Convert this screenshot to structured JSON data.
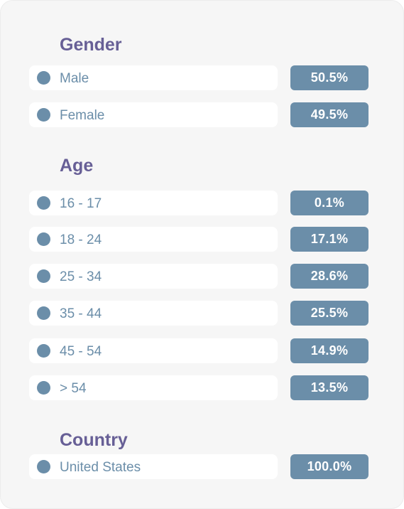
{
  "sections": [
    {
      "title": "Gender",
      "rows": [
        {
          "label": "Male",
          "value": "50.5%"
        },
        {
          "label": "Female",
          "value": "49.5%"
        }
      ]
    },
    {
      "title": "Age",
      "rows": [
        {
          "label": "16 - 17",
          "value": "0.1%"
        },
        {
          "label": "18 - 24",
          "value": "17.1%"
        },
        {
          "label": "25 - 34",
          "value": "28.6%"
        },
        {
          "label": "35 - 44",
          "value": "25.5%"
        },
        {
          "label": "45 - 54",
          "value": "14.9%"
        },
        {
          "label": "> 54",
          "value": "13.5%"
        }
      ]
    },
    {
      "title": "Country",
      "rows": [
        {
          "label": "United States",
          "value": "100.0%"
        }
      ]
    }
  ],
  "colors": {
    "title": "#675f96",
    "accent": "#6b8ea9",
    "card_background": "#f6f6f6",
    "row_background": "#ffffff"
  }
}
